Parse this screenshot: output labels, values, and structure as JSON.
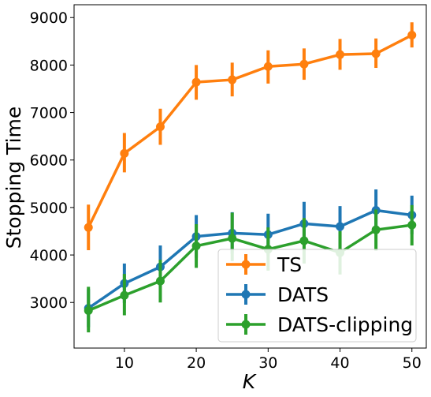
{
  "chart_data": {
    "type": "line",
    "xlabel": "K",
    "ylabel": "Stopping Time",
    "x": [
      5,
      10,
      15,
      20,
      25,
      30,
      35,
      40,
      45,
      50
    ],
    "xlim": [
      3,
      52
    ],
    "ylim": [
      2040,
      9270
    ],
    "xticks": [
      10,
      20,
      30,
      40,
      50
    ],
    "yticks": [
      3000,
      4000,
      5000,
      6000,
      7000,
      8000,
      9000
    ],
    "grid": false,
    "legend_position": "lower-right",
    "series": [
      {
        "name": "TS",
        "color": "#ff7f0e",
        "values": [
          4580,
          6140,
          6700,
          7640,
          7690,
          7970,
          8020,
          8220,
          8240,
          8630
        ],
        "err_low": [
          4100,
          5740,
          6320,
          7270,
          7340,
          7610,
          7690,
          7900,
          7940,
          8370
        ],
        "err_high": [
          5060,
          6570,
          7080,
          8000,
          8050,
          8310,
          8350,
          8550,
          8560,
          8900
        ]
      },
      {
        "name": "DATS",
        "color": "#1f77b4",
        "values": [
          2880,
          3400,
          3750,
          4390,
          4460,
          4430,
          4660,
          4600,
          4940,
          4840
        ],
        "err_low": [
          2480,
          2990,
          3340,
          3940,
          4030,
          3990,
          4200,
          4150,
          4490,
          4440
        ],
        "err_high": [
          3280,
          3820,
          4200,
          4840,
          4900,
          4870,
          5120,
          5030,
          5380,
          5250
        ]
      },
      {
        "name": "DATS-clipping",
        "color": "#2ca02c",
        "values": [
          2830,
          3150,
          3450,
          4190,
          4350,
          4120,
          4300,
          4050,
          4530,
          4630
        ],
        "err_low": [
          2370,
          2730,
          3000,
          3730,
          3870,
          3670,
          3820,
          3590,
          4090,
          4200
        ],
        "err_high": [
          3330,
          3600,
          3900,
          4650,
          4890,
          4580,
          4780,
          4500,
          4960,
          5050
        ]
      }
    ]
  }
}
